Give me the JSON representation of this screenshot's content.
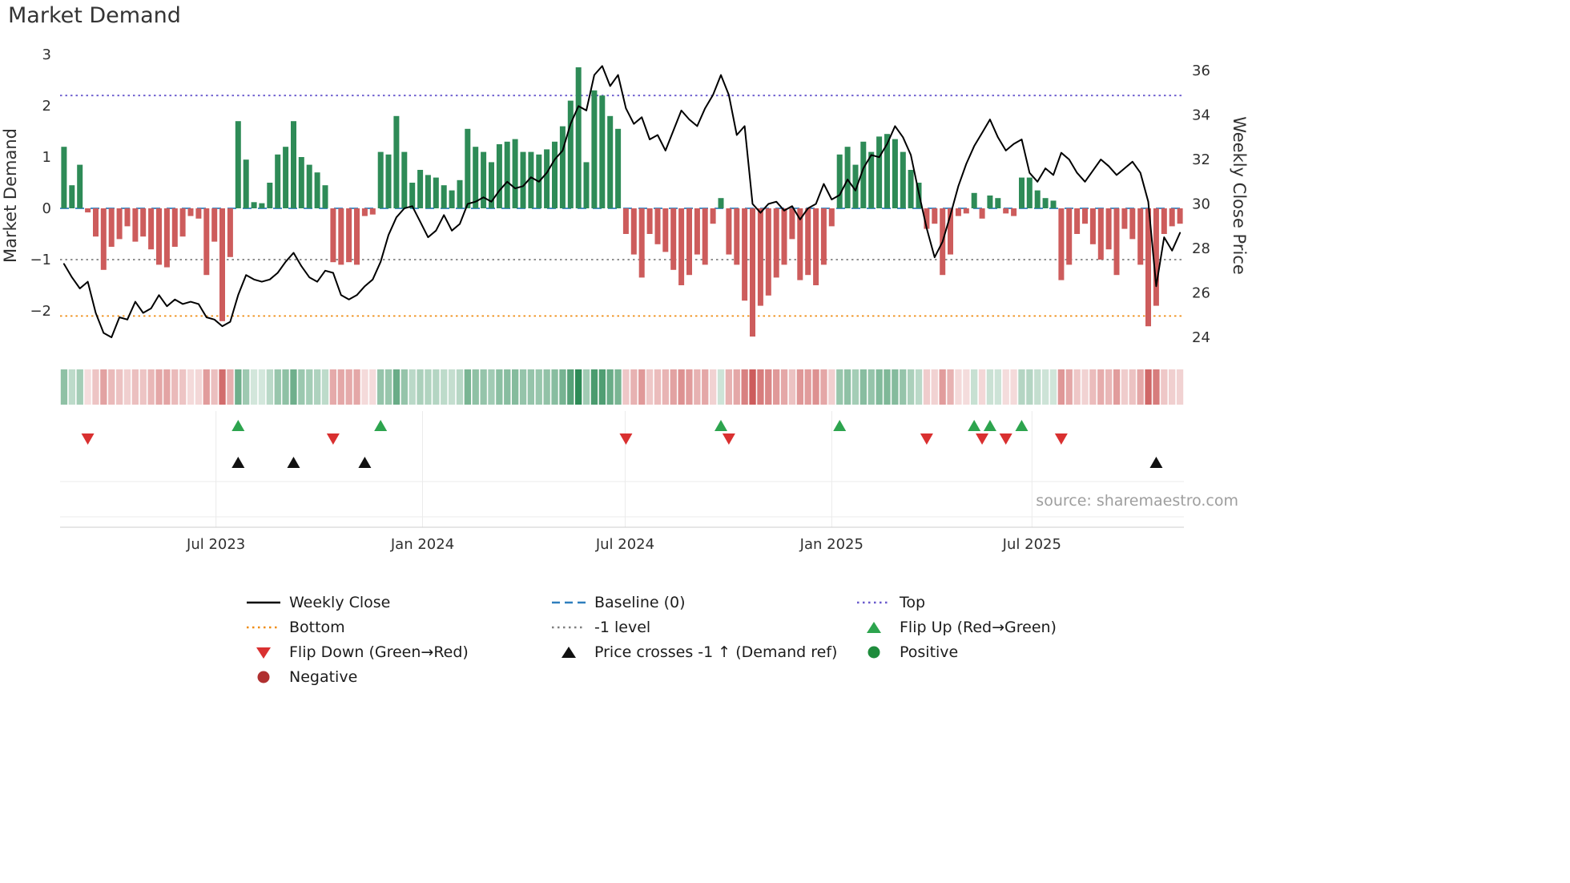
{
  "title": "Market Demand",
  "source": "source: sharemaestro.com",
  "axes": {
    "left": {
      "label": "Market Demand",
      "ticks": [
        {
          "label": "3",
          "value": 3
        },
        {
          "label": "2",
          "value": 2
        },
        {
          "label": "1",
          "value": 1
        },
        {
          "label": "0",
          "value": 0
        },
        {
          "label": "−1",
          "value": -1
        },
        {
          "label": "−2",
          "value": -2
        }
      ]
    },
    "right": {
      "label": "Weekly Close Price",
      "ticks": [
        {
          "label": "36",
          "value": 36
        },
        {
          "label": "34",
          "value": 34
        },
        {
          "label": "32",
          "value": 32
        },
        {
          "label": "30",
          "value": 30
        },
        {
          "label": "28",
          "value": 28
        },
        {
          "label": "26",
          "value": 26
        },
        {
          "label": "24",
          "value": 24
        }
      ]
    },
    "x": {
      "ticks": [
        {
          "label": "Jul 2023",
          "week": 19.2
        },
        {
          "label": "Jan 2024",
          "week": 45.3
        },
        {
          "label": "Jul 2024",
          "week": 70.9
        },
        {
          "label": "Jan 2025",
          "week": 97.0
        },
        {
          "label": "Jul 2025",
          "week": 122.3
        }
      ]
    }
  },
  "reference_lines": {
    "top": {
      "label": "Top",
      "value": 2.2
    },
    "baseline": {
      "label": "Baseline (0)",
      "value": 0
    },
    "minus1": {
      "label": "-1 level",
      "value": -1
    },
    "bottom": {
      "label": "Bottom",
      "value": -2.1
    }
  },
  "colors": {
    "bar_positive": "#2e8b57",
    "bar_negative": "#cd5c5c",
    "price_line": "#000000",
    "baseline": "#2f7fbe",
    "top": "#6a5acd",
    "bottom": "#ef8d15",
    "minus1": "#808080",
    "flip_up": "#2da44e",
    "flip_down": "#d93030",
    "price_cross": "#111111",
    "positive_dot": "#1e8c3c",
    "negative_dot": "#b03030"
  },
  "legend": {
    "items": [
      {
        "label": "Weekly Close",
        "swatch": "line",
        "color": "#000000",
        "col": 1,
        "row": 1
      },
      {
        "label": "Bottom",
        "swatch": "dotted",
        "color": "#ef8d15",
        "col": 1,
        "row": 2
      },
      {
        "label": "Flip Down (Green→Red)",
        "swatch": "triangle-down",
        "color": "#d93030",
        "col": 1,
        "row": 3
      },
      {
        "label": "Negative",
        "swatch": "circle",
        "color": "#b03030",
        "col": 1,
        "row": 4
      },
      {
        "label": "Baseline (0)",
        "swatch": "dashed",
        "color": "#2f7fbe",
        "col": 2,
        "row": 1
      },
      {
        "label": "-1 level",
        "swatch": "dotted",
        "color": "#808080",
        "col": 2,
        "row": 2
      },
      {
        "label": "Price crosses -1 ↑ (Demand ref)",
        "swatch": "triangle-up",
        "color": "#111111",
        "col": 2,
        "row": 3
      },
      {
        "label": "Top",
        "swatch": "dotted",
        "color": "#6a5acd",
        "col": 3,
        "row": 1
      },
      {
        "label": "Flip Up (Red→Green)",
        "swatch": "triangle-up",
        "color": "#2da44e",
        "col": 3,
        "row": 2
      },
      {
        "label": "Positive",
        "swatch": "circle",
        "color": "#1e8c3c",
        "col": 3,
        "row": 3
      }
    ]
  },
  "chart_data": {
    "type": "bar+line",
    "title": "Market Demand",
    "x_unit": "week",
    "n_weeks": 142,
    "left_axis_range": [
      -2.52,
      3.0
    ],
    "right_axis_range": [
      24.0,
      36.7
    ],
    "reference_levels": {
      "top": 2.2,
      "baseline": 0,
      "minus1": -1,
      "bottom": -2.1
    },
    "heatmap_source": "demand",
    "demand": [
      1.2,
      0.45,
      0.85,
      -0.08,
      -0.55,
      -1.2,
      -0.75,
      -0.6,
      -0.35,
      -0.65,
      -0.55,
      -0.8,
      -1.1,
      -1.15,
      -0.75,
      -0.55,
      -0.15,
      -0.2,
      -1.3,
      -0.65,
      -2.2,
      -0.95,
      1.7,
      0.95,
      0.12,
      0.1,
      0.5,
      1.05,
      1.2,
      1.7,
      1.0,
      0.85,
      0.7,
      0.45,
      -1.05,
      -1.1,
      -1.05,
      -1.1,
      -0.15,
      -0.12,
      1.1,
      1.05,
      1.8,
      1.1,
      0.5,
      0.75,
      0.65,
      0.6,
      0.45,
      0.35,
      0.55,
      1.55,
      1.2,
      1.1,
      0.9,
      1.25,
      1.3,
      1.35,
      1.1,
      1.1,
      1.05,
      1.15,
      1.3,
      1.6,
      2.1,
      2.75,
      0.9,
      2.3,
      2.2,
      1.8,
      1.55,
      -0.5,
      -0.9,
      -1.35,
      -0.5,
      -0.7,
      -0.85,
      -1.2,
      -1.5,
      -1.3,
      -0.9,
      -1.1,
      -0.3,
      0.2,
      -0.9,
      -1.1,
      -1.8,
      -2.5,
      -1.9,
      -1.7,
      -1.35,
      -1.1,
      -0.6,
      -1.4,
      -1.3,
      -1.5,
      -1.1,
      -0.35,
      1.05,
      1.2,
      0.85,
      1.3,
      1.1,
      1.4,
      1.45,
      1.35,
      1.1,
      0.75,
      0.5,
      -0.4,
      -0.3,
      -1.3,
      -0.9,
      -0.15,
      -0.1,
      0.3,
      -0.2,
      0.25,
      0.2,
      -0.1,
      -0.15,
      0.6,
      0.6,
      0.35,
      0.2,
      0.15,
      -1.4,
      -1.1,
      -0.5,
      -0.3,
      -0.7,
      -1.0,
      -0.8,
      -1.3,
      -0.4,
      -0.6,
      -1.1,
      -2.3,
      -1.9,
      -0.5,
      -0.35,
      -0.3
    ],
    "price": [
      27.3,
      26.7,
      26.2,
      26.5,
      25.1,
      24.2,
      24.0,
      24.9,
      24.8,
      25.6,
      25.1,
      25.3,
      25.9,
      25.4,
      25.7,
      25.5,
      25.6,
      25.5,
      24.9,
      24.8,
      24.5,
      24.7,
      25.9,
      26.8,
      26.6,
      26.5,
      26.6,
      26.9,
      27.4,
      27.8,
      27.2,
      26.7,
      26.5,
      27.0,
      26.9,
      25.9,
      25.7,
      25.9,
      26.3,
      26.6,
      27.4,
      28.6,
      29.4,
      29.8,
      29.9,
      29.2,
      28.5,
      28.8,
      29.5,
      28.8,
      29.1,
      30.0,
      30.1,
      30.3,
      30.1,
      30.6,
      31.0,
      30.7,
      30.8,
      31.2,
      31.0,
      31.4,
      32.0,
      32.4,
      33.6,
      34.4,
      34.2,
      35.8,
      36.2,
      35.3,
      35.8,
      34.3,
      33.6,
      33.9,
      32.9,
      33.1,
      32.4,
      33.3,
      34.2,
      33.8,
      33.5,
      34.3,
      34.9,
      35.8,
      34.9,
      33.1,
      33.5,
      30.0,
      29.6,
      30.0,
      30.1,
      29.7,
      29.9,
      29.3,
      29.8,
      30.0,
      30.9,
      30.2,
      30.4,
      31.1,
      30.6,
      31.6,
      32.2,
      32.1,
      32.7,
      33.5,
      33.0,
      32.2,
      30.5,
      28.9,
      27.6,
      28.3,
      29.5,
      30.8,
      31.8,
      32.6,
      33.2,
      33.8,
      33.0,
      32.4,
      32.7,
      32.9,
      31.4,
      31.0,
      31.6,
      31.3,
      32.3,
      32.0,
      31.4,
      31.0,
      31.5,
      32.0,
      31.7,
      31.3,
      31.6,
      31.9,
      31.4,
      30.1,
      26.3,
      28.5,
      27.9,
      28.7
    ],
    "flip_up_weeks": [
      22,
      40,
      83,
      98,
      115,
      117,
      121
    ],
    "flip_down_weeks": [
      3,
      34,
      71,
      84,
      109,
      116,
      119,
      126
    ],
    "price_cross_weeks": [
      22,
      29,
      38,
      138
    ]
  }
}
